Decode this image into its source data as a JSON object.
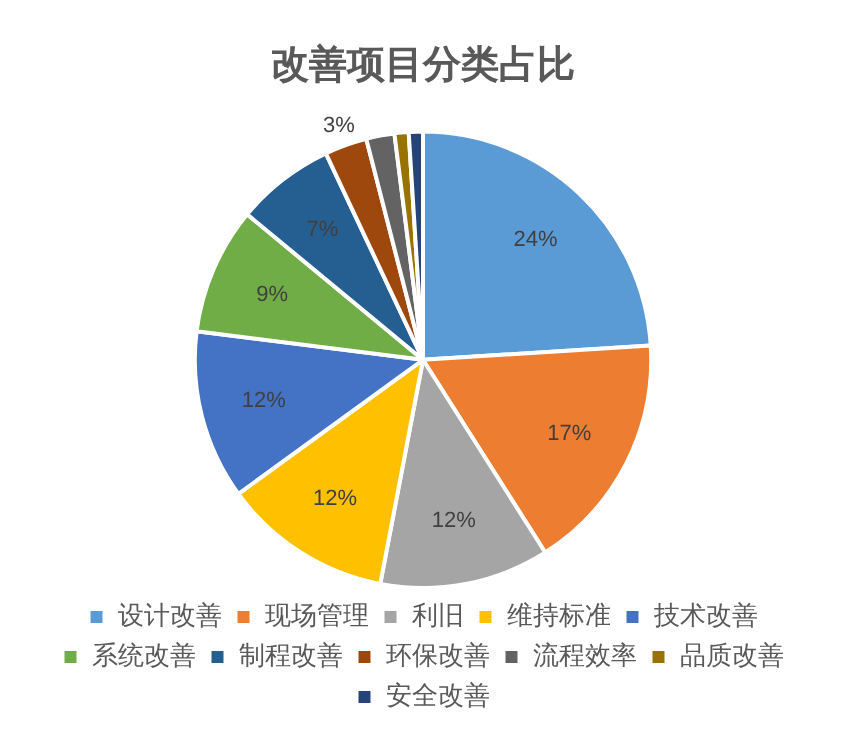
{
  "chart_data": {
    "type": "pie",
    "title": "改善项目分类占比",
    "categories": [
      "设计改善",
      "现场管理",
      "利旧",
      "维持标准",
      "技术改善",
      "系统改善",
      "制程改善",
      "环保改善",
      "流程效率",
      "品质改善",
      "安全改善"
    ],
    "values": [
      24,
      17,
      12,
      12,
      12,
      9,
      7,
      3,
      2,
      1,
      1
    ],
    "colors": [
      "#5b9bd5",
      "#ed7d31",
      "#a5a5a5",
      "#ffc000",
      "#4472c4",
      "#70ad47",
      "#255e91",
      "#9e480e",
      "#636363",
      "#997300",
      "#264478"
    ],
    "value_labels": [
      "24%",
      "17%",
      "12%",
      "12%",
      "12%",
      "9%",
      "7%",
      "3%",
      null,
      null,
      null
    ],
    "legend": "bottom"
  }
}
